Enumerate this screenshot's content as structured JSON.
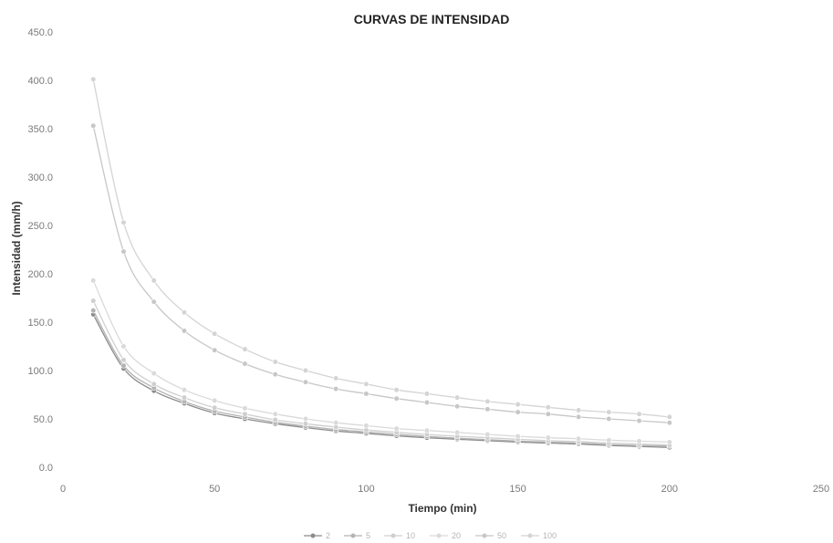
{
  "chart_data": {
    "type": "line",
    "title": "CURVAS DE INTENSIDAD",
    "xlabel": "Tiempo (min)",
    "ylabel": "Intensidad (mm/h)",
    "xlim": [
      0,
      250
    ],
    "ylim": [
      0,
      450
    ],
    "xticks": [
      0,
      50,
      100,
      150,
      200,
      250
    ],
    "yticks": [
      0,
      50,
      100,
      150,
      200,
      250,
      300,
      350,
      400,
      450
    ],
    "xtick_labels": [
      "0",
      "50",
      "100",
      "150",
      "200",
      "250"
    ],
    "ytick_labels": [
      "0.0",
      "50.0",
      "100.0",
      "150.0",
      "200.0",
      "250.0",
      "300.0",
      "350.0",
      "400.0",
      "450.0"
    ],
    "grid": false,
    "legend_position": "bottom",
    "x": [
      10,
      20,
      30,
      40,
      50,
      60,
      70,
      80,
      90,
      100,
      110,
      120,
      130,
      140,
      150,
      160,
      170,
      180,
      190,
      200
    ],
    "series": [
      {
        "name": "2",
        "color": "#8c8c8c",
        "values": [
          158,
          102,
          79,
          66,
          56,
          50,
          45,
          41,
          37.5,
          35,
          32.5,
          30.5,
          29,
          27.5,
          26,
          25,
          24,
          22.5,
          21.5,
          20.5
        ]
      },
      {
        "name": "5",
        "color": "#b3b3b3",
        "values": [
          162,
          105,
          82,
          68,
          58,
          52,
          46.5,
          42.5,
          39,
          36.5,
          34,
          32,
          30,
          28.5,
          27,
          26,
          25,
          23.5,
          22.5,
          22
        ]
      },
      {
        "name": "10",
        "color": "#cfcfcf",
        "values": [
          172,
          111,
          86,
          72,
          61.5,
          55,
          49,
          45,
          41.5,
          38.5,
          36,
          34,
          32,
          30.5,
          29,
          27.5,
          26.5,
          25,
          24,
          23
        ]
      },
      {
        "name": "20",
        "color": "#dadada",
        "values": [
          193,
          125,
          97,
          80,
          69,
          61,
          55,
          50,
          46,
          43,
          40,
          38,
          36,
          34,
          32,
          30.5,
          29.5,
          28,
          27,
          26
        ]
      },
      {
        "name": "50",
        "color": "#c7c7c7",
        "values": [
          353,
          223,
          171,
          141,
          121,
          107,
          96,
          88,
          81,
          76,
          71,
          67,
          63,
          60,
          57,
          55,
          52,
          50,
          48,
          46
        ]
      },
      {
        "name": "100",
        "color": "#d4d4d4",
        "values": [
          401,
          253,
          193,
          160,
          138,
          122,
          109,
          100,
          92,
          86,
          80,
          76,
          72,
          68,
          65,
          62,
          59,
          57,
          55,
          52
        ]
      }
    ]
  }
}
